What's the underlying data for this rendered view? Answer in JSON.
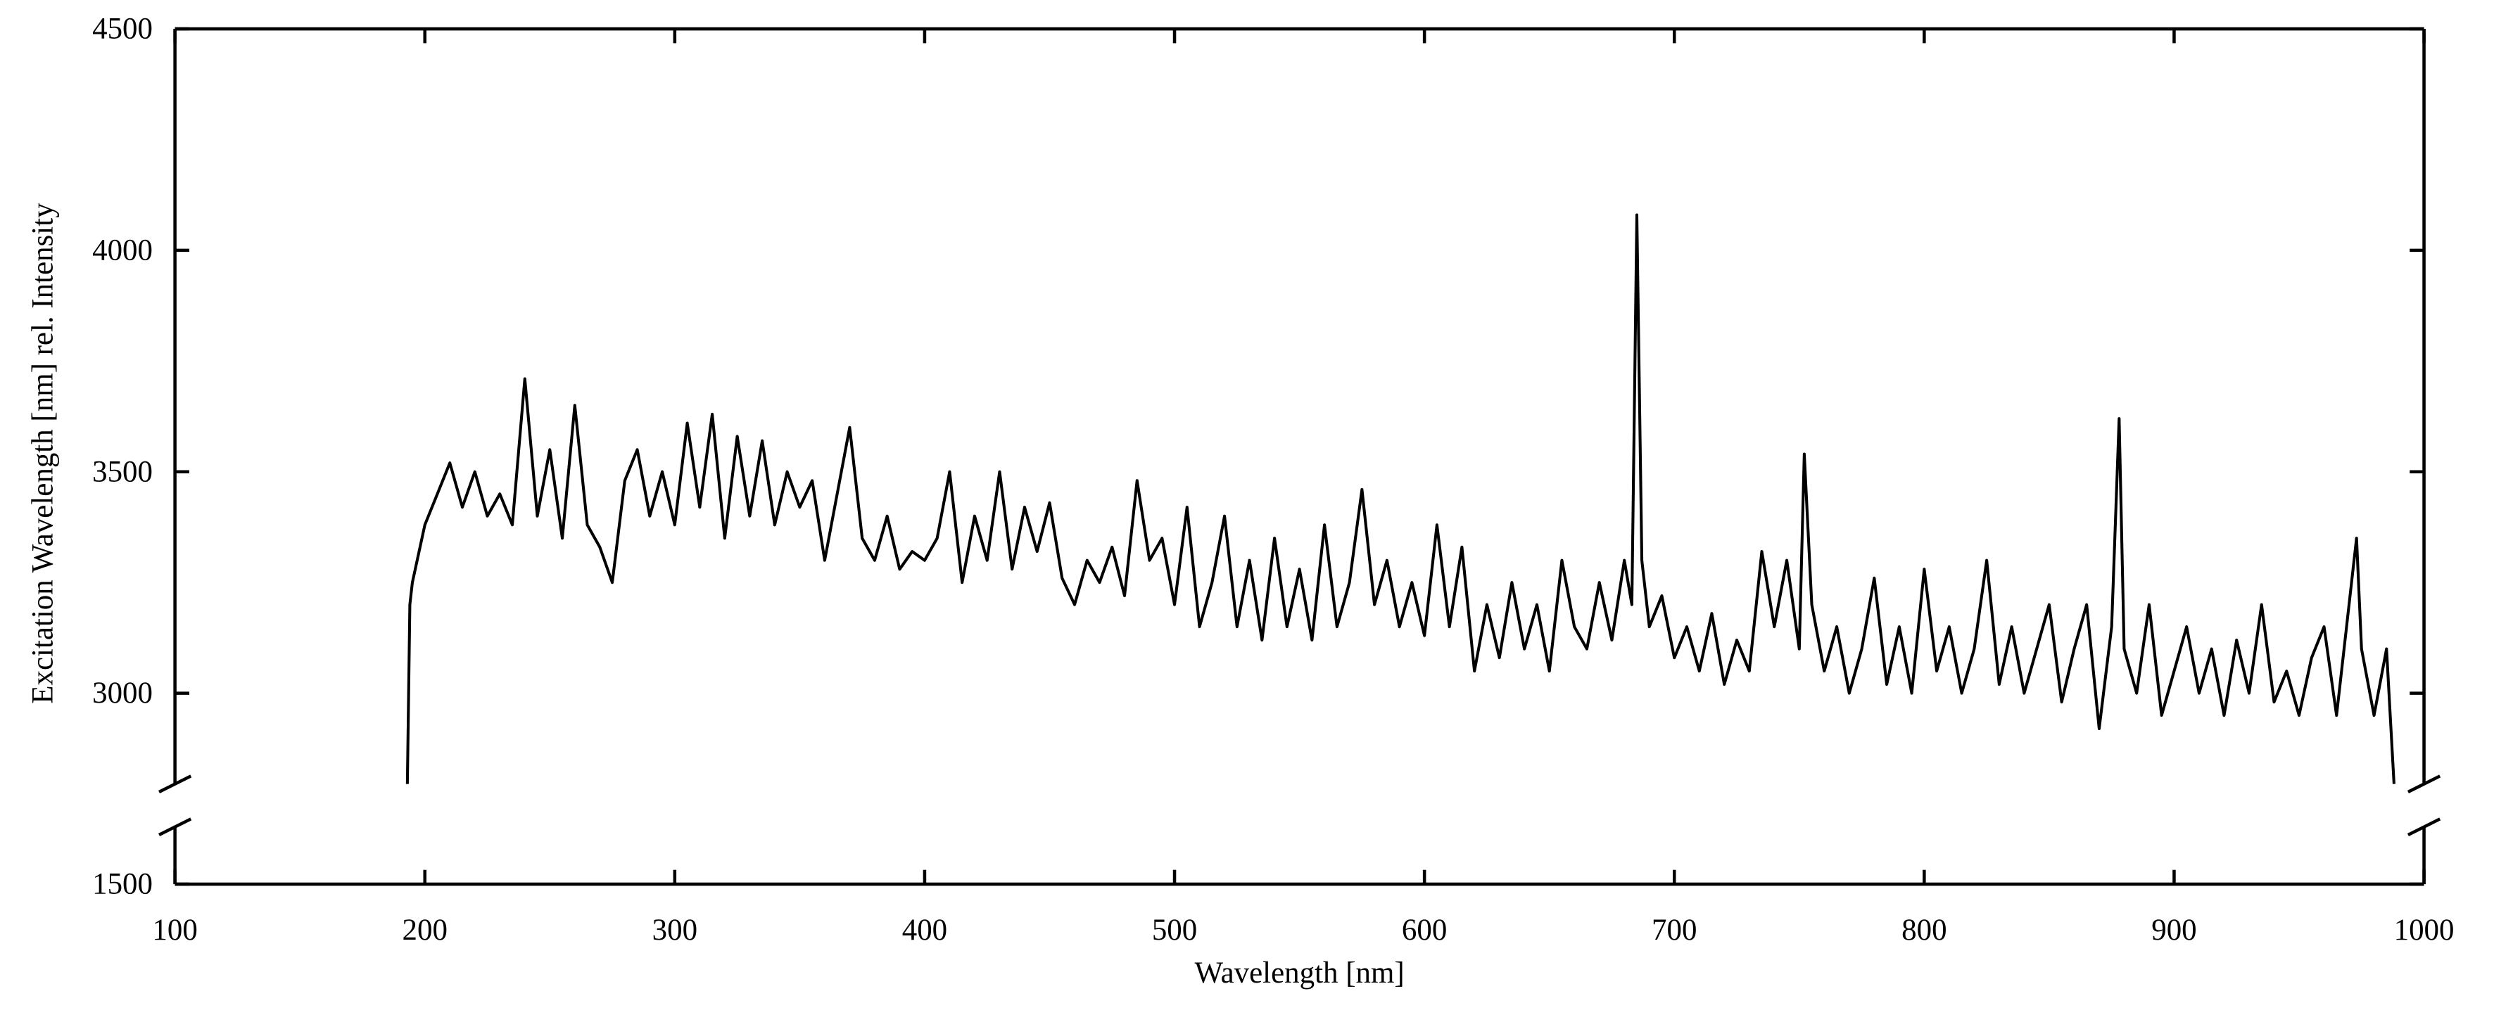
{
  "chart_data": {
    "type": "line",
    "x_label": "Wavelength [nm]",
    "y_label": "Excitation Wavelength [nm] rel. Intensity",
    "color": "#000000",
    "xlim": [
      100,
      1000
    ],
    "xticks": [
      100,
      200,
      300,
      400,
      500,
      600,
      700,
      800,
      900,
      1000
    ],
    "ylim": [
      1500,
      4500
    ],
    "ybreak": [
      1629,
      2795
    ],
    "yticks": [
      1500,
      3000,
      3500,
      4000,
      4500
    ],
    "x": [
      193,
      194,
      195,
      200,
      205,
      210,
      215,
      220,
      225,
      230,
      235,
      240,
      245,
      250,
      255,
      260,
      265,
      270,
      275,
      280,
      285,
      290,
      295,
      300,
      305,
      310,
      315,
      320,
      325,
      330,
      335,
      340,
      345,
      350,
      355,
      360,
      365,
      370,
      375,
      380,
      385,
      390,
      395,
      400,
      405,
      410,
      415,
      420,
      425,
      430,
      435,
      440,
      445,
      450,
      455,
      460,
      465,
      470,
      475,
      480,
      485,
      490,
      495,
      500,
      505,
      510,
      515,
      520,
      525,
      530,
      535,
      540,
      545,
      550,
      555,
      560,
      565,
      570,
      575,
      580,
      585,
      590,
      595,
      600,
      605,
      610,
      615,
      620,
      625,
      630,
      635,
      640,
      645,
      650,
      655,
      660,
      665,
      670,
      675,
      680,
      683,
      685,
      687,
      690,
      695,
      700,
      705,
      710,
      715,
      720,
      725,
      730,
      735,
      740,
      745,
      750,
      752,
      755,
      760,
      765,
      770,
      775,
      780,
      785,
      790,
      795,
      800,
      805,
      810,
      815,
      820,
      825,
      830,
      835,
      840,
      845,
      850,
      855,
      860,
      865,
      870,
      875,
      878,
      880,
      885,
      890,
      895,
      900,
      905,
      910,
      915,
      920,
      925,
      930,
      935,
      940,
      945,
      950,
      955,
      960,
      965,
      970,
      973,
      975,
      980,
      985,
      988
    ],
    "values": [
      2795,
      3200,
      3250,
      3380,
      3450,
      3520,
      3420,
      3500,
      3400,
      3450,
      3380,
      3710,
      3400,
      3550,
      3350,
      3650,
      3380,
      3330,
      3250,
      3480,
      3550,
      3400,
      3500,
      3380,
      3610,
      3420,
      3630,
      3350,
      3580,
      3400,
      3570,
      3380,
      3500,
      3420,
      3480,
      3300,
      3450,
      3600,
      3350,
      3300,
      3400,
      3280,
      3320,
      3300,
      3350,
      3500,
      3250,
      3400,
      3300,
      3500,
      3280,
      3420,
      3320,
      3430,
      3260,
      3200,
      3300,
      3250,
      3330,
      3220,
      3480,
      3300,
      3350,
      3200,
      3420,
      3150,
      3250,
      3400,
      3150,
      3300,
      3120,
      3350,
      3150,
      3280,
      3120,
      3380,
      3150,
      3250,
      3460,
      3200,
      3300,
      3150,
      3250,
      3130,
      3380,
      3150,
      3330,
      3050,
      3200,
      3080,
      3250,
      3100,
      3200,
      3050,
      3300,
      3150,
      3100,
      3250,
      3120,
      3300,
      3200,
      4080,
      3300,
      3150,
      3220,
      3080,
      3150,
      3050,
      3180,
      3020,
      3120,
      3050,
      3320,
      3150,
      3300,
      3100,
      3540,
      3200,
      3050,
      3150,
      3000,
      3100,
      3260,
      3020,
      3150,
      3000,
      3280,
      3050,
      3150,
      3000,
      3100,
      3300,
      3020,
      3150,
      3000,
      3100,
      3200,
      2980,
      3100,
      3200,
      2920,
      3150,
      3620,
      3100,
      3000,
      3200,
      2950,
      3050,
      3150,
      3000,
      3100,
      2950,
      3120,
      3000,
      3200,
      2980,
      3050,
      2950,
      3080,
      3150,
      2950,
      3200,
      3350,
      3100,
      2950,
      3100,
      2795
    ]
  }
}
